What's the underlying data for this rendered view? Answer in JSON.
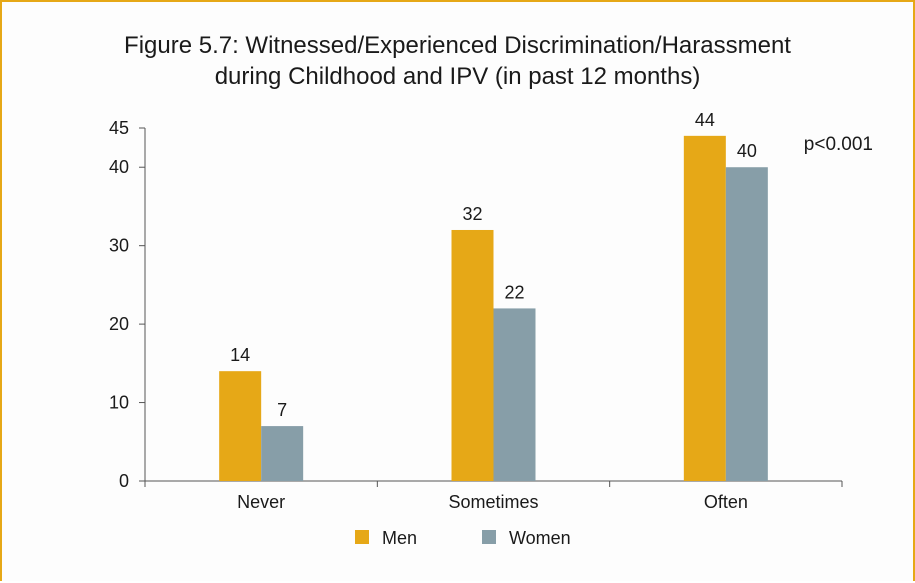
{
  "chart_data": {
    "type": "bar",
    "title": [
      "Figure 5.7: Witnessed/Experienced Discrimination/Harassment",
      "during Childhood and IPV (in past 12 months)"
    ],
    "annotation": "p<0.001",
    "categories": [
      "Never",
      "Sometimes",
      "Often"
    ],
    "series": [
      {
        "name": "Men",
        "values": [
          14,
          32,
          44
        ],
        "labels": [
          "14",
          "32",
          "44"
        ],
        "color": "#e6a817"
      },
      {
        "name": "Women",
        "values": [
          7,
          22,
          40
        ],
        "labels": [
          "7",
          "22",
          "40"
        ],
        "color": "#879ea8"
      }
    ],
    "ylim": [
      0,
      45
    ],
    "yticks": [
      0,
      10,
      20,
      30,
      40,
      45
    ],
    "legend_position": "bottom-center",
    "grid": false
  },
  "colors": {
    "border": "#e6a817",
    "men": "#e6a817",
    "women": "#879ea8"
  }
}
